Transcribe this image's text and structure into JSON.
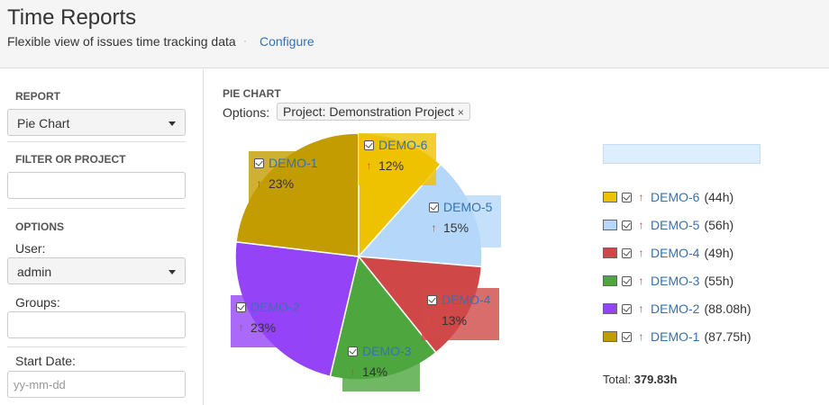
{
  "header": {
    "title": "Time Reports",
    "subtitle": "Flexible view of issues time tracking data",
    "separator": "·",
    "configure_label": "Configure"
  },
  "sidebar": {
    "report_label": "REPORT",
    "report_value": "Pie Chart",
    "filter_label": "FILTER OR PROJECT",
    "filter_value": "",
    "options_label": "OPTIONS",
    "user_label": "User:",
    "user_value": "admin",
    "groups_label": "Groups:",
    "groups_value": "",
    "start_date_label": "Start Date:",
    "start_date_placeholder": "yy-mm-dd"
  },
  "main": {
    "section_label": "PIE CHART",
    "options_label": "Options:",
    "option_chip": "Project: Demonstration Project",
    "option_chip_remove": "×"
  },
  "chart_data": {
    "type": "pie",
    "unit": "h",
    "slices": [
      {
        "label": "DEMO-6",
        "value": 44,
        "value_text": "44h",
        "percent": "12%",
        "color": "#efc200"
      },
      {
        "label": "DEMO-5",
        "value": 56,
        "value_text": "56h",
        "percent": "15%",
        "color": "#b5d8fa"
      },
      {
        "label": "DEMO-4",
        "value": 49,
        "value_text": "49h",
        "percent": "13%",
        "color": "#cf4847"
      },
      {
        "label": "DEMO-3",
        "value": 55,
        "value_text": "55h",
        "percent": "14%",
        "color": "#4ea63f"
      },
      {
        "label": "DEMO-2",
        "value": 88.08,
        "value_text": "88.08h",
        "percent": "23%",
        "color": "#9543f7"
      },
      {
        "label": "DEMO-1",
        "value": 87.75,
        "value_text": "87.75h",
        "percent": "23%",
        "color": "#c29c00"
      }
    ],
    "legend_placement": "right",
    "total_label": "Total:",
    "total_value": "379.83h"
  }
}
